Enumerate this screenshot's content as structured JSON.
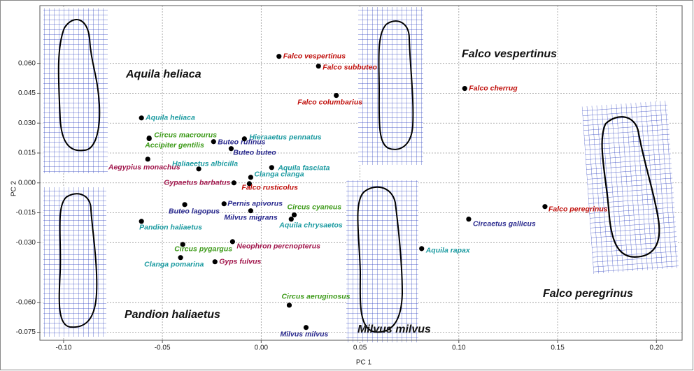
{
  "chart_data": {
    "type": "scatter",
    "xlabel": "PC 1",
    "ylabel": "PC 2",
    "xlim": [
      -0.112,
      0.213
    ],
    "ylim": [
      -0.079,
      0.089
    ],
    "xticks": [
      {
        "value": -0.1,
        "label": "-0.10"
      },
      {
        "value": -0.05,
        "label": "-0.05"
      },
      {
        "value": 0,
        "label": "0.00"
      },
      {
        "value": 0.05,
        "label": "0.05"
      },
      {
        "value": 0.1,
        "label": "0.10"
      },
      {
        "value": 0.15,
        "label": "0.15"
      },
      {
        "value": 0.2,
        "label": "0.20"
      }
    ],
    "yticks": [
      {
        "value": 0.06,
        "label": "0.060"
      },
      {
        "value": 0.045,
        "label": "0.045"
      },
      {
        "value": 0.03,
        "label": "0.030"
      },
      {
        "value": 0.015,
        "label": "0.015"
      },
      {
        "value": 0,
        "label": "0.000"
      },
      {
        "value": -0.015,
        "label": "-0.015"
      },
      {
        "value": -0.03,
        "label": "-0.030"
      },
      {
        "value": -0.06,
        "label": "-0.060"
      },
      {
        "value": -0.075,
        "label": "-0.075"
      }
    ],
    "grid": true,
    "marker_color": "#000000",
    "labels": [
      "Falco vespertinus",
      "Falco subbuteo",
      "Falco columbarius",
      "Falco cherrug",
      "Aquila heliaca",
      "Circus macrourus",
      "Accipiter gentilis",
      "Aegypius monachus",
      "Buteo rufinus",
      "Buteo buteo",
      "Hieraaetus pennatus",
      "Haliaeetus albicilla",
      "Aquila fasciata",
      "Clanga clanga",
      "Gypaetus barbatus",
      "Falco rusticolus",
      "Buteo lagopus",
      "Pernis apivorus",
      "Milvus migrans",
      "Circus cyaneus",
      "Aquila chrysaetos",
      "Pandion haliaetus",
      "Circus pygargus",
      "Clanga pomarina",
      "Neophron percnopterus",
      "Gyps fulvus",
      "Circus aeruginosus",
      "Milvus milvus",
      "Circaetus gallicus",
      "Falco peregrinus",
      "Aquila rapax"
    ],
    "x": [
      0.009,
      0.029,
      0.038,
      0.103,
      -0.0606,
      -0.0567,
      -0.0567,
      -0.0574,
      -0.0241,
      -0.0152,
      -0.0085,
      -0.0316,
      0.0053,
      -0.0053,
      -0.0138,
      -0.006,
      -0.0387,
      -0.0188,
      -0.0053,
      0.0167,
      0.0152,
      -0.0606,
      -0.0397,
      -0.0408,
      -0.0145,
      -0.0234,
      0.0142,
      0.0227,
      0.105,
      0.1436,
      0.0812
    ],
    "y": [
      0.0635,
      0.0586,
      0.0439,
      0.0474,
      0.0326,
      0.0225,
      0.0222,
      0.0119,
      0.0207,
      0.0172,
      0.0221,
      0.007,
      0.0077,
      0.0028,
      0.0,
      -0.0004,
      -0.0109,
      -0.0105,
      -0.014,
      -0.0161,
      -0.0182,
      -0.0193,
      -0.0309,
      -0.0375,
      -0.0295,
      -0.0396,
      -0.0614,
      -0.0726,
      -0.0182,
      -0.0119,
      -0.033
    ],
    "label_colors": [
      "#c0100c",
      "#c0100c",
      "#c0100c",
      "#c0100c",
      "#1a9aa0",
      "#3c9a18",
      "#3c9a18",
      "#a0144a",
      "#2a2a8e",
      "#2a2a8e",
      "#1a9aa0",
      "#1a9aa0",
      "#1a9aa0",
      "#1a9aa0",
      "#a0144a",
      "#c0100c",
      "#2a2a8e",
      "#2a2a8e",
      "#2a2a8e",
      "#3c9a18",
      "#1a9aa0",
      "#1a9aa0",
      "#3c9a18",
      "#1a9aa0",
      "#a0144a",
      "#a0144a",
      "#3c9a18",
      "#2a2a8e",
      "#2a2a8e",
      "#c0100c",
      "#1a9aa0"
    ],
    "annotations": [
      "Aquila heliaca",
      "Falco vespertinus",
      "Pandion haliaetus",
      "Milvus milvus",
      "Falco peregrinus"
    ]
  }
}
